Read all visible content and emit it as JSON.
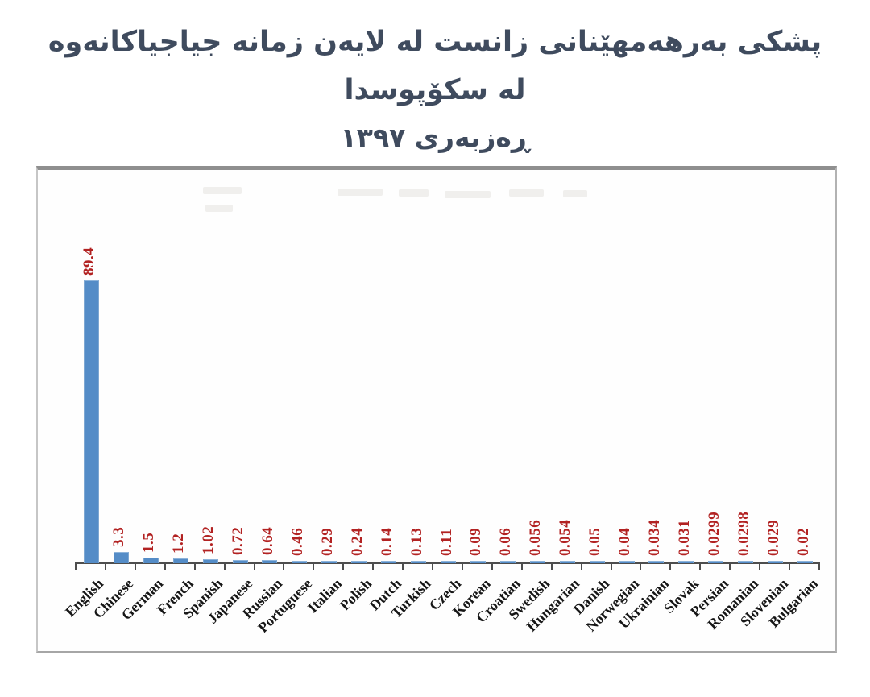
{
  "title": {
    "line1": "پشکی بەرهەمهێنانی زانست لە لایەن زمانە جیاجیاکانەوە لە سکۆپوسدا",
    "line2": "ڕەزبەری ١٣٩٧"
  },
  "chart_data": {
    "type": "bar",
    "title": "پشکی بەرهەمهێنانی زانست لە لایەن زمانە جیاجیاکانەوە لە سکۆپوسدا — ڕەزبەری ١٣٩٧",
    "categories": [
      "English",
      "Chinese",
      "German",
      "French",
      "Spanish",
      "Japanese",
      "Russian",
      "Portuguese",
      "Italian",
      "Polish",
      "Dutch",
      "Turkish",
      "Czech",
      "Korean",
      "Croatian",
      "Swedish",
      "Hungarian",
      "Danish",
      "Norwegian",
      "Ukrainian",
      "Slovak",
      "Persian",
      "Romanian",
      "Slovenian",
      "Bulgarian"
    ],
    "values": [
      89.4,
      3.3,
      1.5,
      1.2,
      1.02,
      0.72,
      0.64,
      0.46,
      0.29,
      0.24,
      0.14,
      0.13,
      0.11,
      0.09,
      0.06,
      0.056,
      0.054,
      0.05,
      0.04,
      0.034,
      0.031,
      0.0299,
      0.0298,
      0.029,
      0.02
    ],
    "value_labels": [
      "89.4",
      "3.3",
      "1.5",
      "1.2",
      "1.02",
      "0.72",
      "0.64",
      "0.46",
      "0.29",
      "0.24",
      "0.14",
      "0.13",
      "0.11",
      "0.09",
      "0.06",
      "0.056",
      "0.054",
      "0.05",
      "0.04",
      "0.034",
      "0.031",
      "0.0299",
      "0.0298",
      "0.029",
      "0.02"
    ],
    "xlabel": "",
    "ylabel": "",
    "ylim": [
      0,
      100
    ],
    "grid": false,
    "legend": "none",
    "bar_color": "#548cc7",
    "value_label_color": "#b22222",
    "category_label_color": "#161616",
    "axis_color": "#4d4d4d",
    "value_labels_rotation_deg": -90,
    "category_labels_rotation_deg": -45
  }
}
